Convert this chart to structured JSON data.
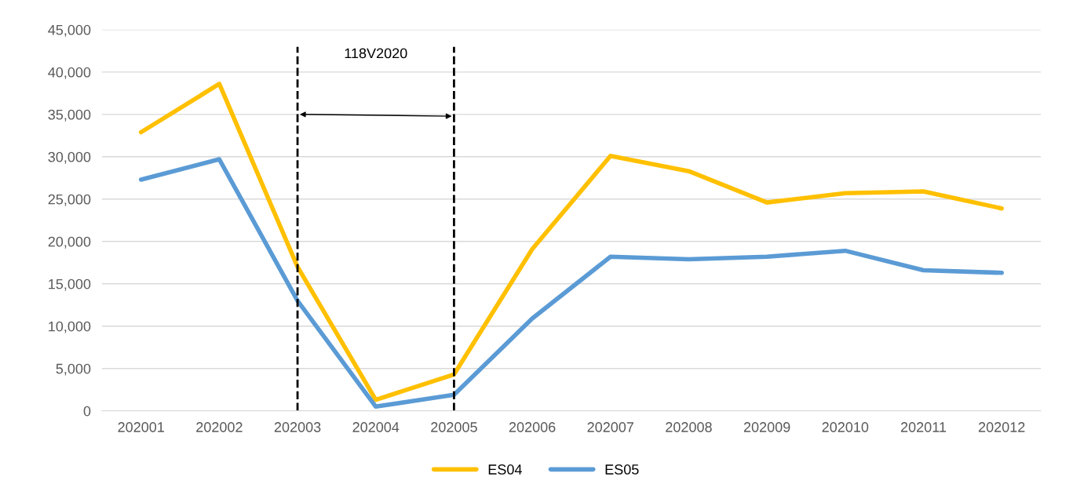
{
  "chart_data": {
    "type": "line",
    "categories": [
      "202001",
      "202002",
      "202003",
      "202004",
      "202005",
      "202006",
      "202007",
      "202008",
      "202009",
      "202010",
      "202011",
      "202012"
    ],
    "series": [
      {
        "name": "ES04",
        "color": "#ffc000",
        "values": [
          32900,
          38600,
          17000,
          1300,
          4300,
          19100,
          30100,
          28300,
          24600,
          25700,
          25900,
          23900
        ]
      },
      {
        "name": "ES05",
        "color": "#5b9bd5",
        "values": [
          27300,
          29700,
          13000,
          500,
          1900,
          10900,
          18200,
          17900,
          18200,
          18900,
          16600,
          16300
        ]
      }
    ],
    "ylim": [
      0,
      45000
    ],
    "yticks": [
      {
        "value": 0,
        "label": "0"
      },
      {
        "value": 5000,
        "label": "5,000"
      },
      {
        "value": 10000,
        "label": "10,000"
      },
      {
        "value": 15000,
        "label": "15,000"
      },
      {
        "value": 20000,
        "label": "20,000"
      },
      {
        "value": 25000,
        "label": "25,000"
      },
      {
        "value": 30000,
        "label": "30,000"
      },
      {
        "value": 35000,
        "label": "35,000"
      },
      {
        "value": 40000,
        "label": "40,000"
      },
      {
        "value": 45000,
        "label": "45,000"
      }
    ],
    "ref_lines": [
      {
        "axis": "x",
        "value": "202003",
        "color": "#000000",
        "line_style": "dashed"
      },
      {
        "axis": "x",
        "value": "202005",
        "color": "#000000",
        "line_style": "dashed"
      }
    ],
    "annotations": [
      "118V2020"
    ],
    "grid": "y",
    "legend": "bottom",
    "marker": "none",
    "line_style": "solid"
  }
}
